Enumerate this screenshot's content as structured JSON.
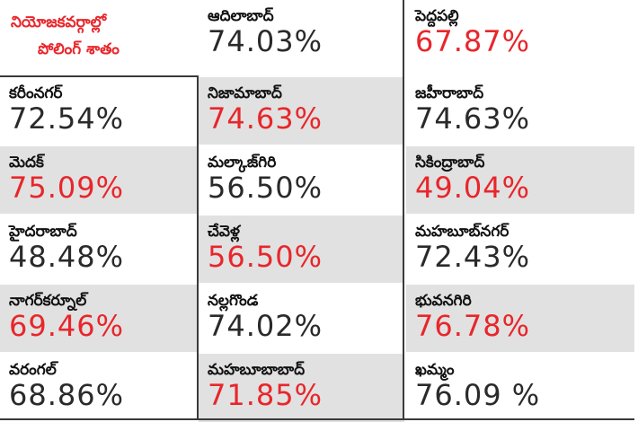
{
  "header": {
    "line1": "నియోజకవర్గాల్లో",
    "line2": "పోలింగ్ శాతం"
  },
  "cells": [
    {
      "name": "ఆదిలాబాద్",
      "value": "74.03%"
    },
    {
      "name": "పెద్దపల్లి",
      "value": "67.87%"
    },
    {
      "name": "కరీంనగర్",
      "value": "72.54%"
    },
    {
      "name": "నిజామాబాద్",
      "value": "74.63%"
    },
    {
      "name": "జహీరాబాద్",
      "value": "74.63%"
    },
    {
      "name": "మెదక్",
      "value": "75.09%"
    },
    {
      "name": "మల్కాజ్‌గిరి",
      "value": "56.50%"
    },
    {
      "name": "సికింద్రాబాద్",
      "value": "49.04%"
    },
    {
      "name": "హైదరాబాద్",
      "value": "48.48%"
    },
    {
      "name": "చేవెళ్ల",
      "value": "56.50%"
    },
    {
      "name": "మహబూబ్‌నగర్",
      "value": "72.43%"
    },
    {
      "name": "నాగర్‌కర్నూల్",
      "value": "69.46%"
    },
    {
      "name": "నల్లగొండ",
      "value": "74.02%"
    },
    {
      "name": "భువనగిరి",
      "value": "76.78%"
    },
    {
      "name": "వరంగల్",
      "value": "68.86%"
    },
    {
      "name": "మహబూబాబాద్",
      "value": "71.85%"
    },
    {
      "name": "ఖమ్మం",
      "value": "76.09 %"
    }
  ],
  "colors": {
    "highlight": "#e8262b",
    "text": "#2a2a2a",
    "shade": "#e1e1e1",
    "rule": "#3a3a3a"
  }
}
